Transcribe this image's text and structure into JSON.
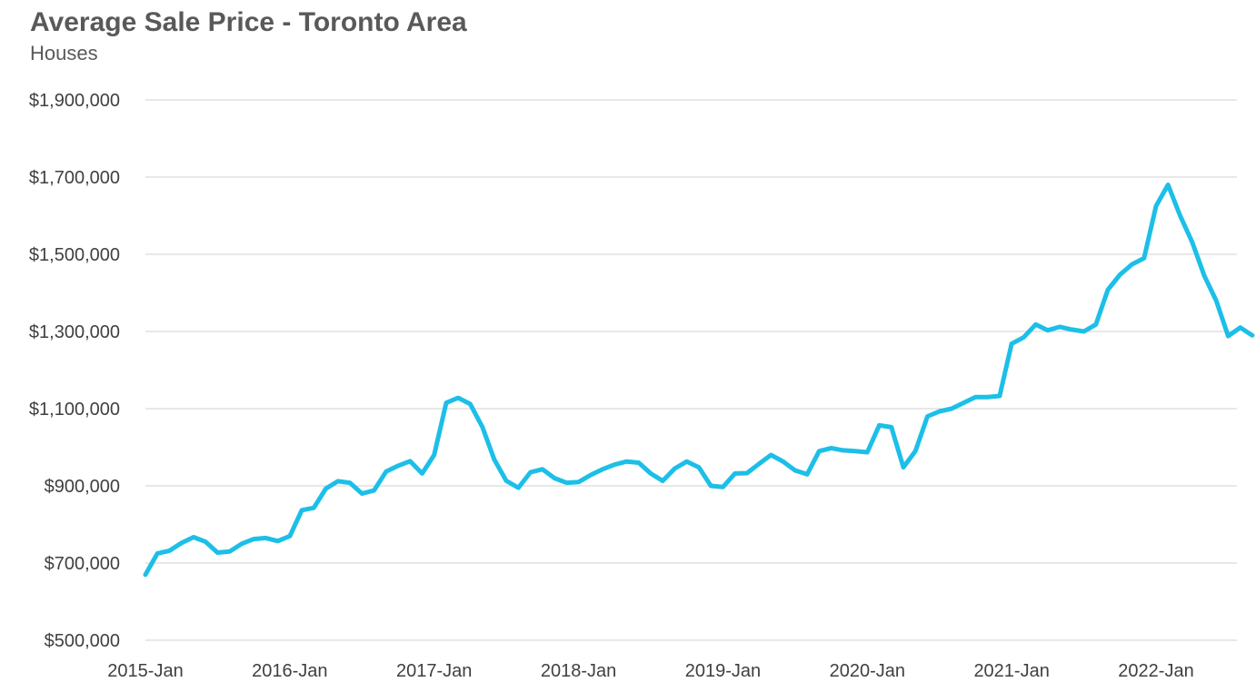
{
  "chart_data": {
    "type": "line",
    "title": "Average Sale Price - Toronto Area",
    "subtitle": "Houses",
    "xlabel": "",
    "ylabel": "",
    "ylim": [
      500000,
      1900000
    ],
    "y_ticks": [
      500000,
      700000,
      900000,
      1100000,
      1300000,
      1500000,
      1700000,
      1900000
    ],
    "y_tick_labels": [
      "$500,000",
      "$700,000",
      "$900,000",
      "$1,100,000",
      "$1,300,000",
      "$1,500,000",
      "$1,700,000",
      "$1,900,000"
    ],
    "x_tick_labels": [
      "2015-Jan",
      "2016-Jan",
      "2017-Jan",
      "2018-Jan",
      "2019-Jan",
      "2020-Jan",
      "2021-Jan",
      "2022-Jan"
    ],
    "x_tick_index": [
      0,
      12,
      24,
      36,
      48,
      60,
      72,
      84
    ],
    "grid": true,
    "series": [
      {
        "name": "Houses",
        "color": "#1cbfe8",
        "values": [
          670000,
          725000,
          732000,
          752000,
          767000,
          755000,
          727000,
          730000,
          750000,
          762000,
          765000,
          757000,
          770000,
          837000,
          843000,
          893000,
          912000,
          908000,
          880000,
          888000,
          937000,
          952000,
          964000,
          932000,
          980000,
          1115000,
          1128000,
          1112000,
          1053000,
          968000,
          913000,
          895000,
          935000,
          943000,
          920000,
          908000,
          910000,
          928000,
          943000,
          955000,
          963000,
          960000,
          932000,
          913000,
          945000,
          963000,
          948000,
          900000,
          897000,
          932000,
          933000,
          957000,
          980000,
          963000,
          940000,
          930000,
          990000,
          998000,
          992000,
          990000,
          987000,
          1057000,
          1052000,
          948000,
          990000,
          1080000,
          1093000,
          1100000,
          1115000,
          1130000,
          1130000,
          1133000,
          1268000,
          1285000,
          1318000,
          1303000,
          1312000,
          1305000,
          1300000,
          1318000,
          1408000,
          1447000,
          1474000,
          1490000,
          1625000,
          1680000,
          1600000,
          1532000,
          1445000,
          1380000,
          1288000,
          1310000,
          1290000
        ]
      }
    ]
  }
}
